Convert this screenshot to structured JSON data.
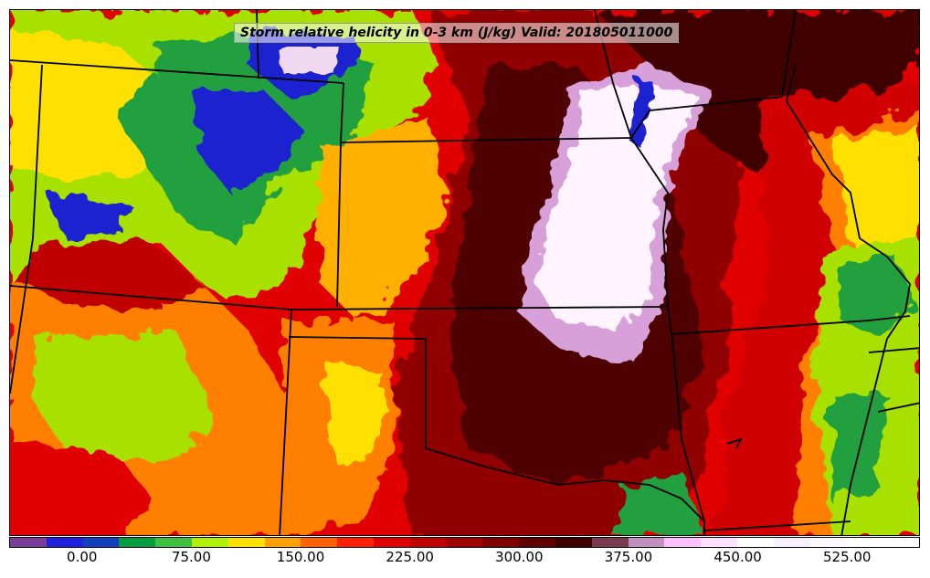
{
  "title": "Storm relative helicity in 0-3 km (J/kg) Valid: 201805011000",
  "colorbar": {
    "min": -50,
    "max": 575,
    "step": 25,
    "colors": [
      "#7a3d9a",
      "#2020e0",
      "#1040c0",
      "#00a040",
      "#40c040",
      "#b0f000",
      "#ffe000",
      "#ffa000",
      "#ff6000",
      "#ff2000",
      "#e00000",
      "#c00000",
      "#a00000",
      "#800000",
      "#600000",
      "#400000",
      "#7a3a50",
      "#c090c0",
      "#ffc0ff",
      "#ffe0ff",
      "#ffffff",
      "#f8f0ff",
      "#fff8ff",
      "#ffffff",
      "#ffffff"
    ],
    "tick_labels": [
      "0.00",
      "75.00",
      "150.00",
      "225.00",
      "300.00",
      "375.00",
      "450.00",
      "525.00"
    ],
    "tick_values": [
      0,
      75,
      150,
      225,
      300,
      375,
      450,
      525
    ]
  },
  "map": {
    "region": "Central United States",
    "field_colors": {
      "low": "#1a20d0",
      "green": "#20a040",
      "lime": "#a8e000",
      "yellow": "#ffe000",
      "orange": "#ff8000",
      "red": "#e00000",
      "darkred": "#800000",
      "maroon": "#400000",
      "pink": "#f0c8f0",
      "white": "#fff4ff"
    }
  }
}
